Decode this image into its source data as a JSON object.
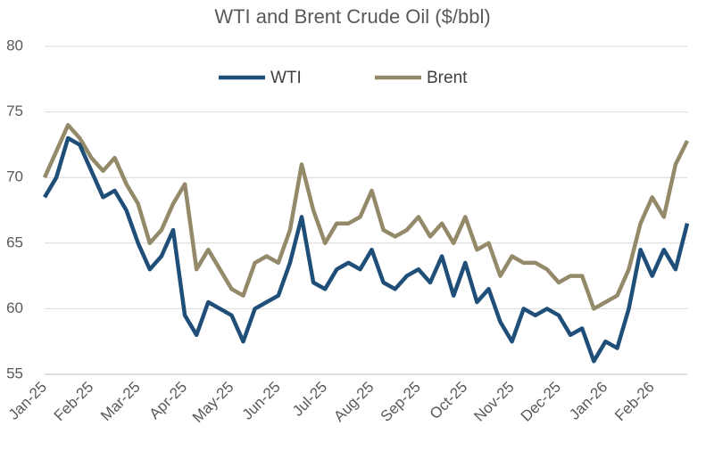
{
  "chart_data": {
    "type": "line",
    "title": "WTI and Brent Crude Oil ($/bbl)",
    "categories": [
      "Jan-25",
      null,
      null,
      null,
      "Feb-25",
      null,
      null,
      null,
      "Mar-25",
      null,
      null,
      null,
      "Apr-25",
      null,
      null,
      null,
      "May-25",
      null,
      null,
      null,
      "Jun-25",
      null,
      null,
      null,
      "Jul-25",
      null,
      null,
      null,
      "Aug-25",
      null,
      null,
      null,
      "Sep-25",
      null,
      null,
      null,
      "Oct-25",
      null,
      null,
      null,
      "Nov-25",
      null,
      null,
      null,
      "Dec-25",
      null,
      null,
      null,
      "Jan-26",
      null,
      null,
      null,
      "Feb-26",
      null,
      null,
      null
    ],
    "series": [
      {
        "name": "WTI",
        "color": "#1f4e79",
        "values": [
          68.5,
          70,
          73,
          72.5,
          70.5,
          68.5,
          69,
          67.5,
          65,
          63,
          64,
          66,
          59.5,
          58,
          60.5,
          60,
          59.5,
          57.5,
          60,
          60.5,
          61,
          63.5,
          67,
          62,
          61.5,
          63,
          63.5,
          63,
          64.5,
          62,
          61.5,
          62.5,
          63,
          62,
          64,
          61,
          63.5,
          60.5,
          61.5,
          59,
          57.5,
          60,
          59.5,
          60,
          59.5,
          58,
          58.5,
          56,
          57.5,
          57,
          60,
          64.5,
          62.5,
          64.5,
          63,
          66.5
        ]
      },
      {
        "name": "Brent",
        "color": "#948a6a",
        "values": [
          70,
          72,
          74,
          73,
          71.5,
          70.5,
          71.5,
          69.5,
          68,
          65,
          66,
          68,
          69.5,
          63,
          64.5,
          63,
          61.5,
          61,
          63.5,
          64,
          63.5,
          66,
          71,
          67.5,
          65,
          66.5,
          66.5,
          67,
          69,
          66,
          65.5,
          66,
          67,
          65.5,
          66.5,
          65,
          67,
          64.5,
          65,
          62.5,
          64,
          63.5,
          63.5,
          63,
          62,
          62.5,
          62.5,
          60,
          60.5,
          61,
          63,
          66.5,
          68.5,
          67,
          71,
          72.8
        ]
      }
    ],
    "ylim": [
      55,
      80
    ],
    "yticks": [
      55,
      60,
      65,
      70,
      75,
      80
    ],
    "grid": true,
    "legend": "top"
  }
}
